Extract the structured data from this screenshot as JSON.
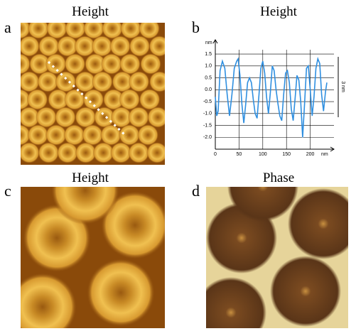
{
  "panels": [
    {
      "label": "a",
      "title": "Height"
    },
    {
      "label": "b",
      "title": "Height"
    },
    {
      "label": "c",
      "title": "Height"
    },
    {
      "label": "d",
      "title": "Phase"
    }
  ],
  "chart_data": {
    "type": "line",
    "y_label": "nm",
    "x_label": "nm",
    "annotations": [
      "3 nm"
    ],
    "color": "#2f8fe0",
    "grid": true,
    "x": [
      0,
      3,
      6,
      10,
      15,
      20,
      25,
      30,
      35,
      40,
      45,
      48,
      52,
      56,
      60,
      64,
      68,
      72,
      76,
      80,
      84,
      88,
      92,
      96,
      100,
      104,
      108,
      112,
      116,
      120,
      124,
      128,
      132,
      136,
      140,
      144,
      148,
      152,
      156,
      160,
      164,
      168,
      172,
      176,
      180,
      184,
      188,
      192,
      196,
      200,
      204,
      208,
      212,
      216,
      220,
      224,
      228,
      232,
      235
    ],
    "values": [
      -0.3,
      -1.1,
      -0.9,
      0.8,
      1.2,
      0.9,
      -0.2,
      -1.1,
      -0.2,
      0.9,
      1.2,
      1.3,
      0.6,
      -0.6,
      -1.4,
      -0.6,
      0.3,
      0.5,
      0.3,
      -0.4,
      -1.0,
      -1.2,
      -0.2,
      0.9,
      1.2,
      0.7,
      -0.3,
      -1.0,
      -0.1,
      1.0,
      0.8,
      0.0,
      -0.6,
      -1.1,
      -1.3,
      -0.2,
      0.7,
      0.8,
      0.3,
      -0.8,
      -1.3,
      -0.4,
      0.6,
      0.4,
      -0.5,
      -2.0,
      -0.6,
      0.9,
      1.0,
      0.0,
      -1.1,
      -0.3,
      0.9,
      1.3,
      1.1,
      -0.2,
      -0.9,
      -0.1,
      0.3
    ],
    "xlim": [
      0,
      250
    ],
    "ylim": [
      -2.5,
      2.1
    ],
    "xticks": [
      0,
      50,
      100,
      150,
      200
    ],
    "yticks": [
      1.5,
      {
        "value": 1.0,
        "label": "1.0"
      },
      0.5,
      {
        "value": 0.0,
        "label": "0.0"
      },
      -0.5,
      {
        "value": -1.0,
        "label": "-1.0"
      },
      -1.5,
      {
        "value": -2.0,
        "label": "-2.0"
      }
    ]
  }
}
